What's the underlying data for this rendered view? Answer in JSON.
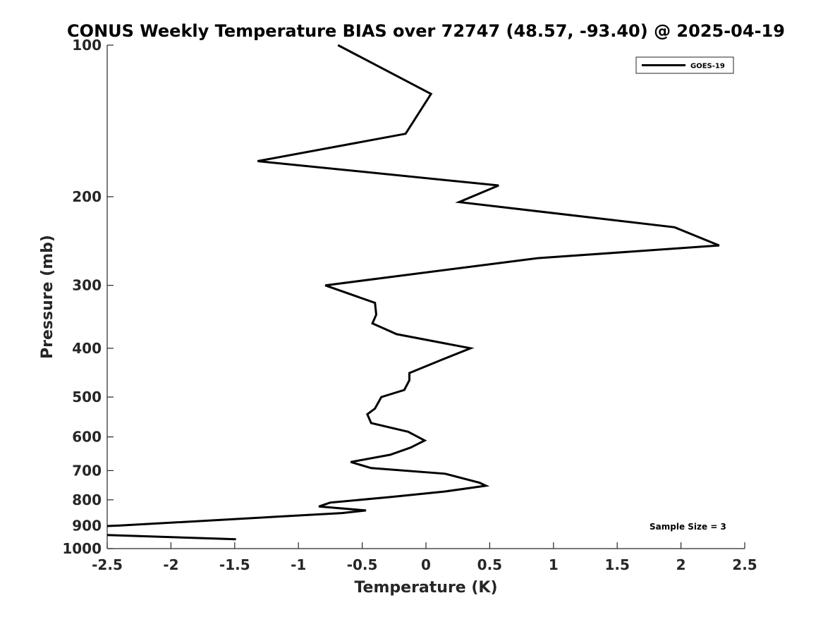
{
  "chart_data": {
    "type": "line",
    "title": "CONUS Weekly Temperature BIAS over 72747 (48.57, -93.40) @ 2025-04-19",
    "xlabel": "Temperature (K)",
    "ylabel": "Pressure (mb)",
    "xlim": [
      -2.5,
      2.5
    ],
    "ylim": [
      100,
      1000
    ],
    "yscale": "log",
    "yreversed": true,
    "x_ticks": [
      "-2.5",
      "-2",
      "-1.5",
      "-1",
      "-0.5",
      "0",
      "0.5",
      "1",
      "1.5",
      "2",
      "2.5"
    ],
    "y_ticks": [
      "100",
      "200",
      "300",
      "400",
      "500",
      "600",
      "700",
      "800",
      "900",
      "1000"
    ],
    "grid": false,
    "legend_position": "top-right",
    "series": [
      {
        "name": "GOES-19",
        "color": "#000000",
        "points": [
          [
            -0.69,
            100
          ],
          [
            0.04,
            125
          ],
          [
            -0.16,
            150
          ],
          [
            -1.32,
            170
          ],
          [
            0.57,
            190
          ],
          [
            0.26,
            205
          ],
          [
            1.95,
            230
          ],
          [
            2.3,
            250
          ],
          [
            0.87,
            265
          ],
          [
            -0.79,
            300
          ],
          [
            -0.4,
            325
          ],
          [
            -0.39,
            343
          ],
          [
            -0.42,
            357
          ],
          [
            -0.23,
            375
          ],
          [
            0.35,
            400
          ],
          [
            0.12,
            422
          ],
          [
            -0.13,
            448
          ],
          [
            -0.13,
            463
          ],
          [
            -0.17,
            484
          ],
          [
            -0.35,
            500
          ],
          [
            -0.4,
            527
          ],
          [
            -0.46,
            541
          ],
          [
            -0.43,
            563
          ],
          [
            -0.14,
            586
          ],
          [
            -0.01,
            610
          ],
          [
            -0.12,
            630
          ],
          [
            -0.28,
            651
          ],
          [
            -0.59,
            673
          ],
          [
            -0.43,
            692
          ],
          [
            0.15,
            710
          ],
          [
            0.42,
            740
          ],
          [
            0.47,
            750
          ],
          [
            0.15,
            770
          ],
          [
            -0.28,
            790
          ],
          [
            -0.75,
            810
          ],
          [
            -0.84,
            825
          ],
          [
            -0.47,
            840
          ],
          [
            -0.66,
            850
          ],
          [
            -2.4,
            900
          ],
          [
            -2.5,
            902
          ]
        ]
      },
      {
        "name": "",
        "color": "#000000",
        "points": [
          [
            -2.5,
            940
          ],
          [
            -1.49,
            958
          ]
        ]
      }
    ],
    "annotations": [
      "Sample Size = 3"
    ]
  }
}
